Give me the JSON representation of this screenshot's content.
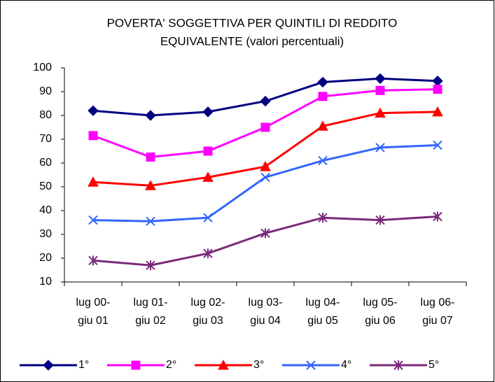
{
  "chart_data": {
    "type": "line",
    "title": [
      "POVERTA' SOGGETTIVA PER QUINTILI DI REDDITO",
      "EQUIVALENTE (valori percentuali)"
    ],
    "categories": [
      [
        "lug 00-",
        "giu 01"
      ],
      [
        "lug 01-",
        "giu 02"
      ],
      [
        "lug 02-",
        "giu 03"
      ],
      [
        "lug 03-",
        "giu 04"
      ],
      [
        "lug 04-",
        "giu 05"
      ],
      [
        "lug 05-",
        "giu 06"
      ],
      [
        "lug 06-",
        "giu 07"
      ]
    ],
    "series": [
      {
        "name": "1°",
        "color": "#000080",
        "marker": "diamond",
        "values": [
          82,
          80,
          81.5,
          86,
          94,
          95.5,
          94.5
        ]
      },
      {
        "name": "2°",
        "color": "#ff00ff",
        "marker": "square",
        "values": [
          71.5,
          62.5,
          65,
          75,
          88,
          90.5,
          91
        ]
      },
      {
        "name": "3°",
        "color": "#ff0000",
        "marker": "triangle",
        "values": [
          52,
          50.5,
          54,
          58.5,
          75.5,
          81,
          81.5
        ]
      },
      {
        "name": "4°",
        "color": "#3366ff",
        "marker": "x",
        "values": [
          36,
          35.5,
          37,
          54,
          61,
          66.5,
          67.5
        ]
      },
      {
        "name": "5°",
        "color": "#7a2a7a",
        "marker": "star",
        "values": [
          19,
          17,
          22,
          30.5,
          37,
          36,
          37.5
        ]
      }
    ],
    "ylim": [
      10,
      100
    ],
    "yticks": [
      10,
      20,
      30,
      40,
      50,
      60,
      70,
      80,
      90,
      100
    ],
    "grid": false,
    "legend": "bottom"
  }
}
